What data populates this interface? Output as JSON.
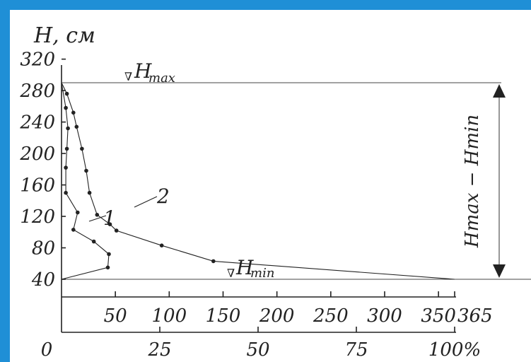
{
  "chart_data": {
    "type": "line",
    "ylabel": "H, см",
    "y_ticks": [
      "320",
      "280",
      "240",
      "200",
      "160",
      "120",
      "80",
      "40"
    ],
    "ylim": [
      40,
      320
    ],
    "x_scale_top": {
      "ticks": [
        "50",
        "100",
        "150",
        "200",
        "250",
        "300",
        "350",
        "365"
      ],
      "range": [
        0,
        365
      ]
    },
    "x_scale_bottom": {
      "ticks": [
        "0",
        "25",
        "50",
        "75",
        "100%"
      ],
      "range": [
        0,
        100
      ]
    },
    "hmax_label": {
      "symbol": "∇",
      "text": "H",
      "sub": "max"
    },
    "hmin_label": {
      "symbol": "∇",
      "text": "H",
      "sub": "min"
    },
    "range_label": "Hmax − Hmin",
    "hmax_value": 290,
    "hmin_value": 40,
    "series": [
      {
        "name": "1",
        "points": [
          [
            0,
            290
          ],
          [
            4,
            258
          ],
          [
            6,
            232
          ],
          [
            5,
            206
          ],
          [
            4,
            182
          ],
          [
            4,
            150
          ],
          [
            15,
            125
          ],
          [
            11,
            103
          ],
          [
            30,
            88
          ],
          [
            44,
            72
          ],
          [
            43,
            55
          ],
          [
            0,
            40
          ]
        ]
      },
      {
        "name": "2",
        "points": [
          [
            0,
            290
          ],
          [
            5,
            276
          ],
          [
            11,
            252
          ],
          [
            14,
            234
          ],
          [
            19,
            206
          ],
          [
            23,
            178
          ],
          [
            26,
            150
          ],
          [
            33,
            122
          ],
          [
            45,
            110
          ],
          [
            51,
            102
          ],
          [
            93,
            83
          ],
          [
            141,
            63
          ],
          [
            365,
            40
          ]
        ]
      }
    ]
  }
}
